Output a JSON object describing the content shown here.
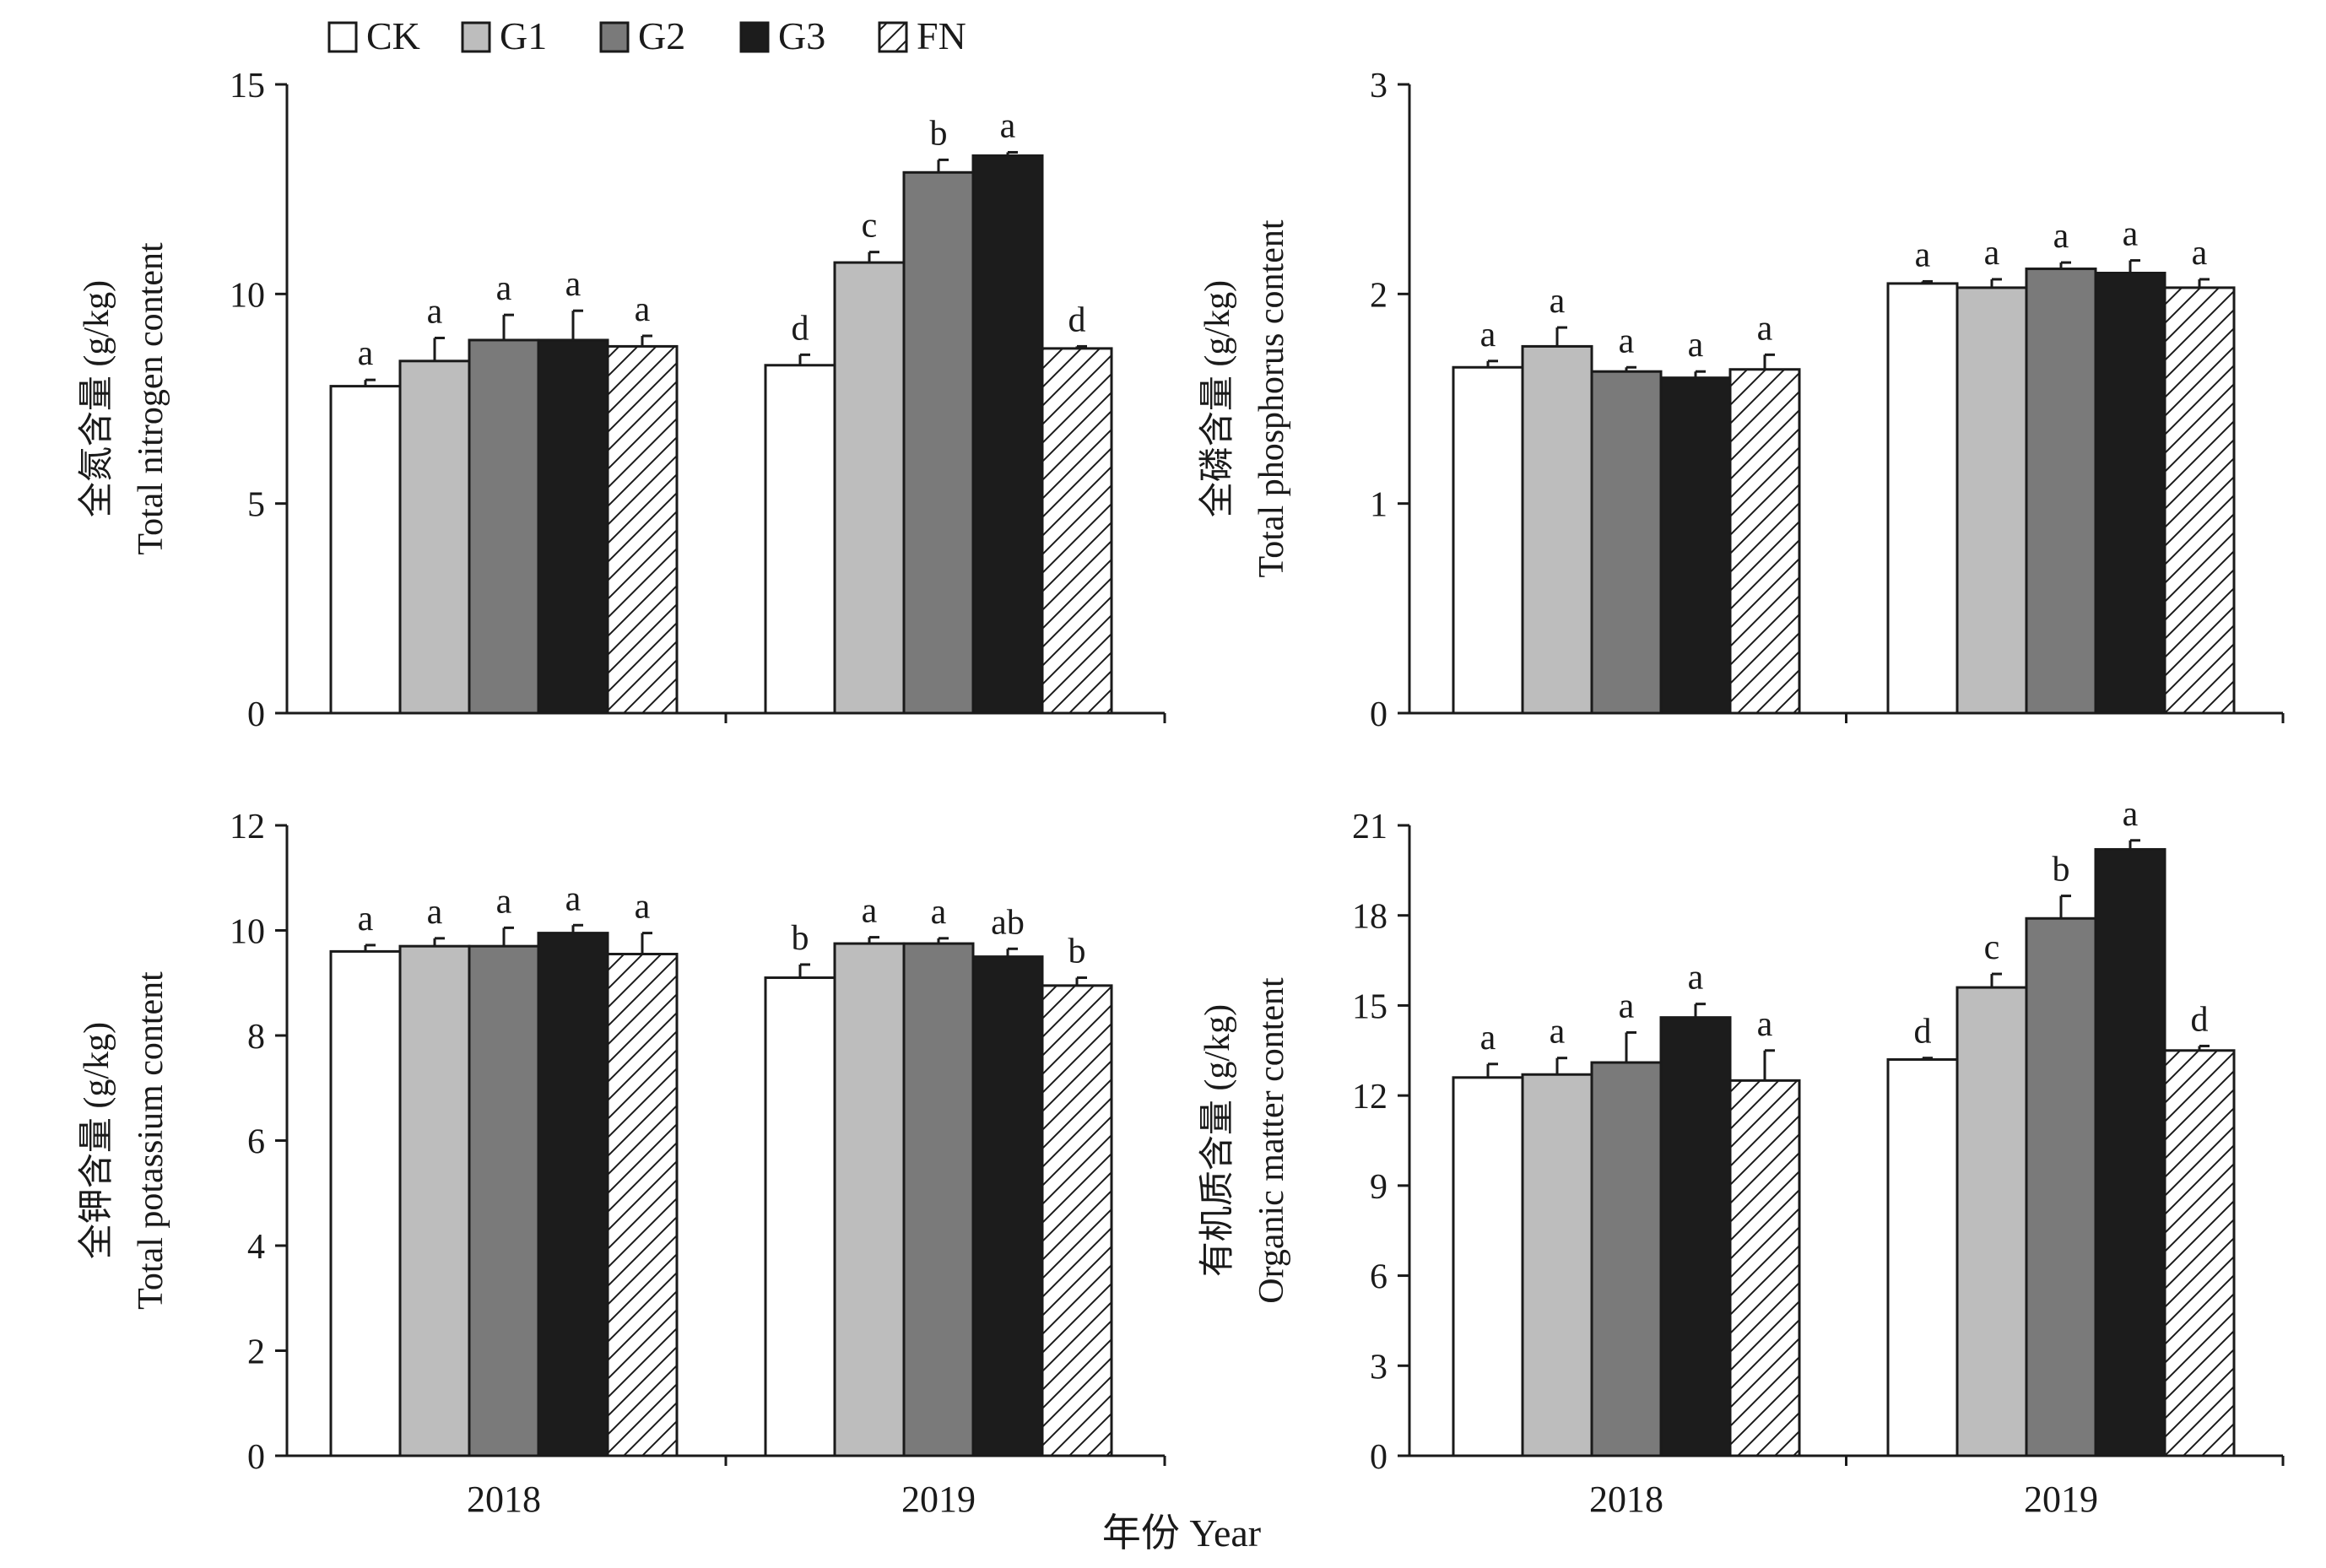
{
  "legend": [
    {
      "name": "CK",
      "fill": "#ffffff",
      "pattern": "none"
    },
    {
      "name": "G1",
      "fill": "#bdbdbd",
      "pattern": "none"
    },
    {
      "name": "G2",
      "fill": "#7a7a7a",
      "pattern": "none"
    },
    {
      "name": "G3",
      "fill": "#1c1c1c",
      "pattern": "none"
    },
    {
      "name": "FN",
      "fill": "#ffffff",
      "pattern": "diagonal-hatch"
    }
  ],
  "x_axis_title": "年份 Year",
  "chart_data": [
    {
      "type": "bar",
      "ylabel_cn": "全氮含量 (g/kg)",
      "ylabel_en": "Total nitrogen content",
      "categories": [
        "2018",
        "2019"
      ],
      "ylim": [
        0,
        15
      ],
      "yticks": [
        0,
        5,
        10,
        15
      ],
      "series": [
        {
          "name": "CK",
          "values": [
            7.8,
            8.3
          ],
          "errors": [
            0.15,
            0.25
          ],
          "letters": [
            "a",
            "d"
          ]
        },
        {
          "name": "G1",
          "values": [
            8.4,
            10.75
          ],
          "errors": [
            0.55,
            0.25
          ],
          "letters": [
            "a",
            "c"
          ]
        },
        {
          "name": "G2",
          "values": [
            8.9,
            12.9
          ],
          "errors": [
            0.6,
            0.3
          ],
          "letters": [
            "a",
            "b"
          ]
        },
        {
          "name": "G3",
          "values": [
            8.9,
            13.3
          ],
          "errors": [
            0.7,
            0.08
          ],
          "letters": [
            "a",
            "a"
          ]
        },
        {
          "name": "FN",
          "values": [
            8.75,
            8.7
          ],
          "errors": [
            0.25,
            0.05
          ],
          "letters": [
            "a",
            "d"
          ]
        }
      ]
    },
    {
      "type": "bar",
      "ylabel_cn": "全磷含量 (g/kg)",
      "ylabel_en": "Total phosphorus content",
      "categories": [
        "2018",
        "2019"
      ],
      "ylim": [
        0,
        3
      ],
      "yticks": [
        0,
        1,
        2,
        3
      ],
      "series": [
        {
          "name": "CK",
          "values": [
            1.65,
            2.05
          ],
          "errors": [
            0.03,
            0.01
          ],
          "letters": [
            "a",
            "a"
          ]
        },
        {
          "name": "G1",
          "values": [
            1.75,
            2.03
          ],
          "errors": [
            0.09,
            0.04
          ],
          "letters": [
            "a",
            "a"
          ]
        },
        {
          "name": "G2",
          "values": [
            1.63,
            2.12
          ],
          "errors": [
            0.02,
            0.03
          ],
          "letters": [
            "a",
            "a"
          ]
        },
        {
          "name": "G3",
          "values": [
            1.6,
            2.1
          ],
          "errors": [
            0.03,
            0.06
          ],
          "letters": [
            "a",
            "a"
          ]
        },
        {
          "name": "FN",
          "values": [
            1.64,
            2.03
          ],
          "errors": [
            0.07,
            0.04
          ],
          "letters": [
            "a",
            "a"
          ]
        }
      ]
    },
    {
      "type": "bar",
      "ylabel_cn": "全钾含量 (g/kg)",
      "ylabel_en": "Total potassium content",
      "categories": [
        "2018",
        "2019"
      ],
      "ylim": [
        0,
        12
      ],
      "yticks": [
        0,
        2,
        4,
        6,
        8,
        10,
        12
      ],
      "series": [
        {
          "name": "CK",
          "values": [
            9.6,
            9.1
          ],
          "errors": [
            0.12,
            0.25
          ],
          "letters": [
            "a",
            "b"
          ]
        },
        {
          "name": "G1",
          "values": [
            9.7,
            9.75
          ],
          "errors": [
            0.15,
            0.12
          ],
          "letters": [
            "a",
            "a"
          ]
        },
        {
          "name": "G2",
          "values": [
            9.7,
            9.75
          ],
          "errors": [
            0.35,
            0.1
          ],
          "letters": [
            "a",
            "a"
          ]
        },
        {
          "name": "G3",
          "values": [
            9.95,
            9.5
          ],
          "errors": [
            0.15,
            0.15
          ],
          "letters": [
            "a",
            "ab"
          ]
        },
        {
          "name": "FN",
          "values": [
            9.55,
            8.95
          ],
          "errors": [
            0.4,
            0.15
          ],
          "letters": [
            "a",
            "b"
          ]
        }
      ]
    },
    {
      "type": "bar",
      "ylabel_cn": "有机质含量 (g/kg)",
      "ylabel_en": "Organic matter content",
      "categories": [
        "2018",
        "2019"
      ],
      "ylim": [
        0,
        21
      ],
      "yticks": [
        0,
        3,
        6,
        9,
        12,
        15,
        18,
        21
      ],
      "series": [
        {
          "name": "CK",
          "values": [
            12.6,
            13.2
          ],
          "errors": [
            0.45,
            0.05
          ],
          "letters": [
            "a",
            "d"
          ]
        },
        {
          "name": "G1",
          "values": [
            12.7,
            15.6
          ],
          "errors": [
            0.55,
            0.45
          ],
          "letters": [
            "a",
            "c"
          ]
        },
        {
          "name": "G2",
          "values": [
            13.1,
            17.9
          ],
          "errors": [
            1.0,
            0.75
          ],
          "letters": [
            "a",
            "b"
          ]
        },
        {
          "name": "G3",
          "values": [
            14.6,
            20.2
          ],
          "errors": [
            0.45,
            0.3
          ],
          "letters": [
            "a",
            "a"
          ]
        },
        {
          "name": "FN",
          "values": [
            12.5,
            13.5
          ],
          "errors": [
            1.0,
            0.15
          ],
          "letters": [
            "a",
            "d"
          ]
        }
      ]
    }
  ]
}
